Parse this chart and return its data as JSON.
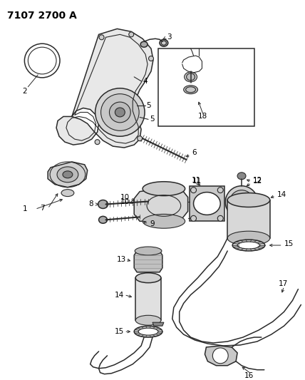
{
  "title": "7107 2700 A",
  "bg_color": "#ffffff",
  "line_color": "#2a2a2a",
  "label_color": "#000000",
  "title_fontsize": 10,
  "label_fontsize": 7.5,
  "fig_width": 4.28,
  "fig_height": 5.33,
  "dpi": 100
}
